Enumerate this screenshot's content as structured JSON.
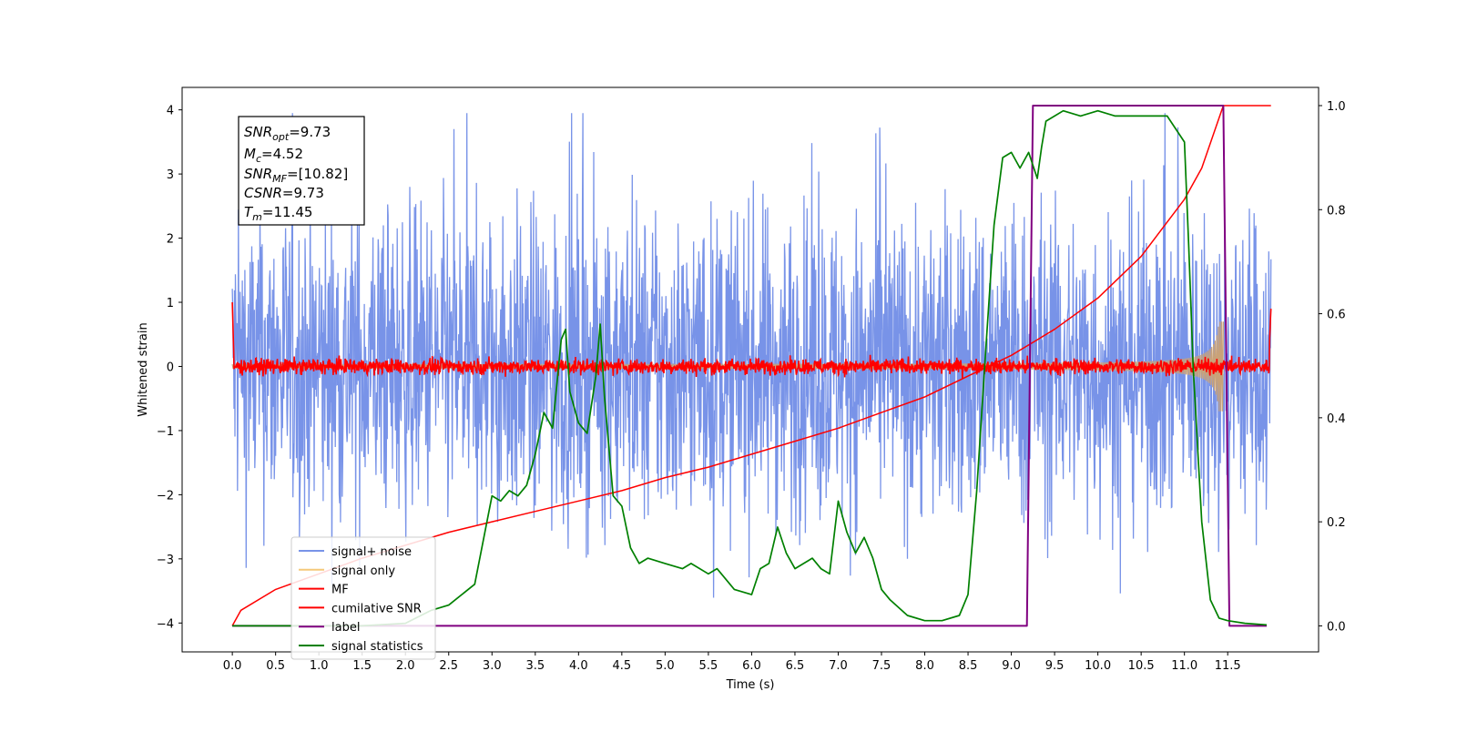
{
  "chart_data": {
    "type": "line",
    "xlabel": "Time (s)",
    "ylabel": "Whitened strain",
    "xlim": [
      -0.58,
      12.55
    ],
    "ylim": [
      -4.45,
      4.35
    ],
    "y2lim": [
      -0.05,
      1.035
    ],
    "x_ticks": [
      "0.0",
      "0.5",
      "1.0",
      "1.5",
      "2.0",
      "2.5",
      "3.0",
      "3.5",
      "4.0",
      "4.5",
      "5.0",
      "5.5",
      "6.0",
      "6.5",
      "7.0",
      "7.5",
      "8.0",
      "8.5",
      "9.0",
      "9.5",
      "10.0",
      "10.5",
      "11.0",
      "11.5"
    ],
    "y_ticks": [
      "4",
      "3",
      "2",
      "1",
      "0",
      "−1",
      "−2",
      "−3",
      "−4"
    ],
    "y2_ticks": [
      "1.0",
      "0.8",
      "0.6",
      "0.4",
      "0.2",
      "0.0"
    ],
    "info_box": {
      "snr_opt": {
        "sym": "SNR",
        "sub": "opt",
        "value": "=9.73"
      },
      "mc": {
        "sym": "M",
        "sub": "c",
        "value": "=4.52"
      },
      "snr_mf": {
        "sym": "SNR",
        "sub": "MF",
        "value": "=[10.82]"
      },
      "csnr": {
        "sym": "CSNR",
        "sub": "",
        "value": "=9.73"
      },
      "tm": {
        "sym": "T",
        "sub": "m",
        "value": "=11.45"
      }
    },
    "series": [
      {
        "name": "signal+ noise",
        "color": "#7893e8",
        "kind": "noise",
        "amplitude": 2.2,
        "x_range": [
          0.0,
          12.0
        ]
      },
      {
        "name": "signal only",
        "color": "#f5c97a",
        "kind": "chirp",
        "amplitude_range": [
          0.03,
          0.7
        ],
        "x_range": [
          0.0,
          11.45
        ]
      },
      {
        "name": "MF",
        "color": "#ff0000",
        "kind": "noise",
        "amplitude": 0.12,
        "x_range": [
          0.0,
          12.0
        ]
      },
      {
        "name": "cumilative SNR",
        "color": "#ff0000",
        "axis": "right",
        "x": [
          0.0,
          0.1,
          0.5,
          1.0,
          1.5,
          2.0,
          2.5,
          3.0,
          3.5,
          4.0,
          4.5,
          5.0,
          5.5,
          6.0,
          6.5,
          7.0,
          7.5,
          8.0,
          8.5,
          9.0,
          9.5,
          10.0,
          10.5,
          11.0,
          11.2,
          11.45,
          12.0
        ],
        "values": [
          0.0,
          0.03,
          0.07,
          0.1,
          0.13,
          0.155,
          0.18,
          0.2,
          0.22,
          0.24,
          0.26,
          0.285,
          0.305,
          0.33,
          0.355,
          0.38,
          0.41,
          0.44,
          0.48,
          0.52,
          0.57,
          0.63,
          0.71,
          0.82,
          0.88,
          1.0,
          1.0
        ]
      },
      {
        "name": "label",
        "color": "#800080",
        "axis": "right",
        "x": [
          0.0,
          9.18,
          9.25,
          11.45,
          11.52,
          11.95
        ],
        "values": [
          0.0,
          0.0,
          1.0,
          1.0,
          0.0,
          0.0
        ]
      },
      {
        "name": "signal statistics",
        "color": "#008000",
        "axis": "right",
        "x": [
          0.0,
          0.5,
          1.0,
          1.5,
          2.0,
          2.3,
          2.5,
          2.8,
          3.0,
          3.1,
          3.2,
          3.3,
          3.4,
          3.5,
          3.6,
          3.7,
          3.8,
          3.85,
          3.9,
          4.0,
          4.1,
          4.2,
          4.25,
          4.3,
          4.4,
          4.5,
          4.6,
          4.7,
          4.8,
          5.0,
          5.2,
          5.3,
          5.5,
          5.6,
          5.8,
          6.0,
          6.1,
          6.2,
          6.3,
          6.4,
          6.5,
          6.6,
          6.7,
          6.8,
          6.9,
          7.0,
          7.1,
          7.2,
          7.3,
          7.4,
          7.5,
          7.6,
          7.8,
          8.0,
          8.2,
          8.4,
          8.5,
          8.6,
          8.7,
          8.8,
          8.9,
          9.0,
          9.1,
          9.2,
          9.3,
          9.35,
          9.4,
          9.6,
          9.8,
          10.0,
          10.2,
          10.4,
          10.6,
          10.8,
          11.0,
          11.05,
          11.1,
          11.2,
          11.3,
          11.4,
          11.5,
          11.7,
          11.95
        ],
        "values": [
          0.0,
          0.0,
          0.0,
          0.0,
          0.005,
          0.03,
          0.04,
          0.08,
          0.25,
          0.24,
          0.26,
          0.25,
          0.27,
          0.33,
          0.41,
          0.38,
          0.55,
          0.57,
          0.45,
          0.39,
          0.37,
          0.48,
          0.58,
          0.44,
          0.25,
          0.23,
          0.15,
          0.12,
          0.13,
          0.12,
          0.11,
          0.12,
          0.1,
          0.11,
          0.07,
          0.06,
          0.11,
          0.12,
          0.19,
          0.14,
          0.11,
          0.12,
          0.13,
          0.11,
          0.1,
          0.24,
          0.18,
          0.14,
          0.17,
          0.13,
          0.07,
          0.05,
          0.02,
          0.01,
          0.01,
          0.02,
          0.06,
          0.26,
          0.52,
          0.77,
          0.9,
          0.91,
          0.88,
          0.91,
          0.86,
          0.92,
          0.97,
          0.99,
          0.98,
          0.99,
          0.98,
          0.98,
          0.98,
          0.98,
          0.93,
          0.73,
          0.5,
          0.2,
          0.05,
          0.015,
          0.01,
          0.005,
          0.002
        ]
      }
    ],
    "grid": false,
    "legend": "lower-left"
  }
}
